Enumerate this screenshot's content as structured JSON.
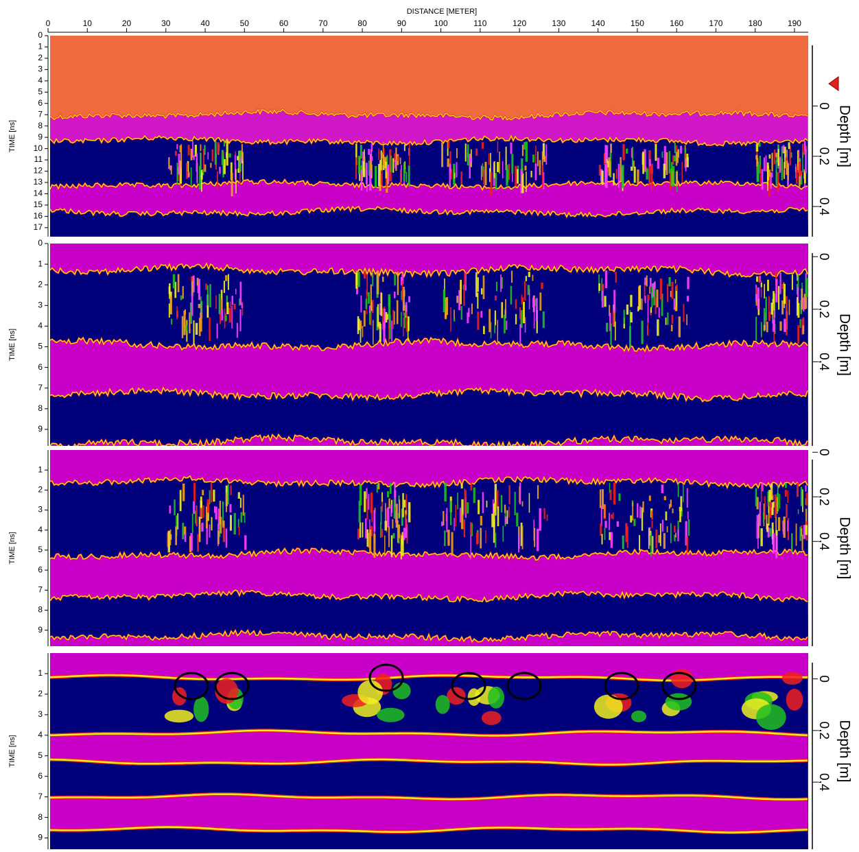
{
  "chart_data": [
    {
      "type": "radargram",
      "x_label": "DISTANCE [METER]",
      "xlim": [
        0,
        193.5
      ],
      "xticks": [
        0,
        10,
        20,
        30,
        40,
        50,
        60,
        70,
        80,
        90,
        100,
        110,
        120,
        130,
        140,
        150,
        160,
        170,
        180,
        190
      ],
      "y_label": "TIME [ns]",
      "ylim": [
        0,
        17.8
      ],
      "yticks": [
        0,
        1,
        2,
        3,
        4,
        5,
        6,
        7,
        8,
        9,
        10,
        11,
        12,
        13,
        14,
        15,
        16,
        17
      ],
      "y2_label": "Depth [m]",
      "y2lim": [
        -0.28,
        0.52
      ],
      "y2ticks": [
        0,
        {
          "value": 0.2,
          "label": "0,2"
        },
        {
          "value": 0.4,
          "label": "0,4"
        }
      ]
    },
    {
      "type": "radargram",
      "y_label": "TIME [ns]",
      "ylim": [
        0,
        9.8
      ],
      "yticks": [
        0,
        1,
        2,
        3,
        4,
        5,
        6,
        7,
        8,
        9
      ],
      "y2_label": "Depth [m]",
      "y2lim": [
        -0.05,
        0.72
      ],
      "y2ticks": [
        0,
        {
          "value": 0.2,
          "label": "0,2"
        },
        {
          "value": 0.4,
          "label": "0,4"
        }
      ]
    },
    {
      "type": "radargram",
      "y_label": "TIME [ns]",
      "ylim": [
        0,
        9.8
      ],
      "yticks": [
        1,
        2,
        3,
        4,
        5,
        6,
        7,
        8,
        9
      ],
      "y2_label": "Depth [m]",
      "y2lim": [
        -0.01,
        0.87
      ],
      "y2ticks": [
        0,
        {
          "value": 0.2,
          "label": "0,2"
        },
        {
          "value": 0.4,
          "label": "0,4"
        }
      ]
    },
    {
      "type": "radargram",
      "y_label": "TIME [ns]",
      "ylim": [
        0,
        9.55
      ],
      "yticks": [
        1,
        2,
        3,
        4,
        5,
        6,
        7,
        8,
        9
      ],
      "y2_label": "Depth [m]",
      "y2lim": [
        -0.1,
        0.66
      ],
      "y2ticks": [
        0,
        {
          "value": 0.2,
          "label": "0,2"
        },
        {
          "value": 0.4,
          "label": "0,4"
        }
      ]
    }
  ]
}
